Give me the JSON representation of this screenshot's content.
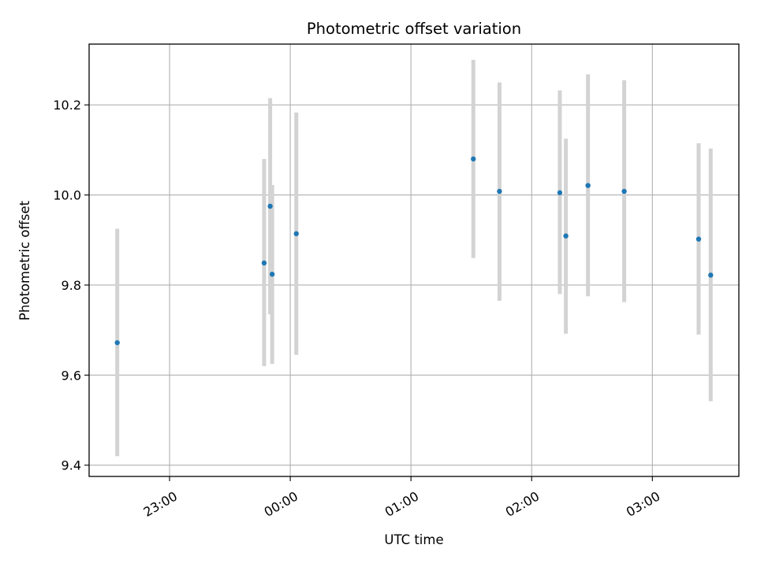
{
  "chart_data": {
    "type": "scatter",
    "title": "Photometric offset variation",
    "xlabel": "UTC time",
    "ylabel": "Photometric offset",
    "x_unit": "UTC time (HH:MM)",
    "xlim": [
      "22:20",
      "03:43"
    ],
    "ylim": [
      9.375,
      10.335
    ],
    "grid": true,
    "x_ticks": [
      {
        "value": "23:00",
        "label": "23:00"
      },
      {
        "value": "24:00",
        "label": "00:00"
      },
      {
        "value": "25:00",
        "label": "01:00"
      },
      {
        "value": "26:00",
        "label": "02:00"
      },
      {
        "value": "27:00",
        "label": "03:00"
      }
    ],
    "y_ticks": [
      9.4,
      9.6,
      9.8,
      10.0,
      10.2
    ],
    "y_tick_labels": [
      "9.4",
      "9.6",
      "9.8",
      "10.0",
      "10.2"
    ],
    "series": [
      {
        "points": [
          {
            "x": "22:34",
            "y": 9.672,
            "ylow": 9.42,
            "yhigh": 9.925
          },
          {
            "x": "23:47",
            "y": 9.849,
            "ylow": 9.62,
            "yhigh": 10.08
          },
          {
            "x": "23:50",
            "y": 9.975,
            "ylow": 9.735,
            "yhigh": 10.215
          },
          {
            "x": "23:51",
            "y": 9.824,
            "ylow": 9.625,
            "yhigh": 10.022
          },
          {
            "x": "00:03",
            "y": 9.914,
            "ylow": 9.645,
            "yhigh": 10.183
          },
          {
            "x": "01:31",
            "y": 10.08,
            "ylow": 9.86,
            "yhigh": 10.3
          },
          {
            "x": "01:44",
            "y": 10.008,
            "ylow": 9.765,
            "yhigh": 10.25
          },
          {
            "x": "02:14",
            "y": 10.005,
            "ylow": 9.78,
            "yhigh": 10.232
          },
          {
            "x": "02:17",
            "y": 9.909,
            "ylow": 9.692,
            "yhigh": 10.125
          },
          {
            "x": "02:28",
            "y": 10.021,
            "ylow": 9.775,
            "yhigh": 10.268
          },
          {
            "x": "02:46",
            "y": 10.008,
            "ylow": 9.762,
            "yhigh": 10.255
          },
          {
            "x": "03:23",
            "y": 9.902,
            "ylow": 9.69,
            "yhigh": 10.115
          },
          {
            "x": "03:29",
            "y": 9.822,
            "ylow": 9.542,
            "yhigh": 10.103
          }
        ]
      }
    ],
    "colors": {
      "marker": "#1f77b4",
      "errorbar": "#d3d3d3",
      "grid": "#b0b0b0",
      "axes": "#000000"
    }
  }
}
